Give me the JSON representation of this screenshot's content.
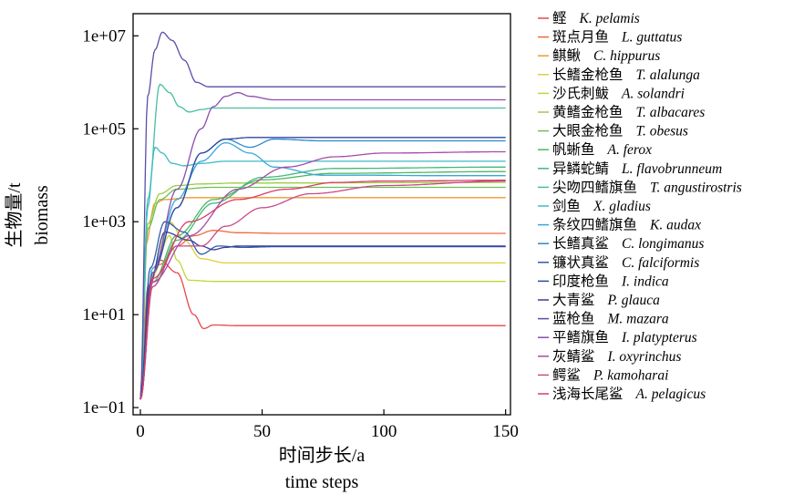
{
  "chart_data": {
    "type": "line",
    "title": "",
    "xlabel": {
      "zh": "时间步长/a",
      "en": "time steps"
    },
    "ylabel": {
      "zh": "生物量/t",
      "en": "biomass"
    },
    "y_scale": "log",
    "xlim": [
      -3,
      152
    ],
    "ylim": [
      0.07,
      30000000
    ],
    "x_ticks": [
      0,
      50,
      100,
      150
    ],
    "x_tick_labels": [
      "0",
      "50",
      "100",
      "150"
    ],
    "y_ticks": [
      0.1,
      10,
      1000,
      100000,
      10000000
    ],
    "y_tick_labels": [
      "1e−01",
      "1e+01",
      "1e+03",
      "1e+05",
      "1e+07"
    ],
    "grid": false,
    "legend_position": "right",
    "series": [
      {
        "name": "鲣",
        "sci": "K. pelamis",
        "color": "#e8474b",
        "x": [
          0,
          3,
          8,
          15,
          22,
          26,
          30,
          40,
          60,
          150
        ],
        "y": [
          0.15,
          30,
          150,
          80,
          10,
          5,
          6,
          5.8,
          5.8,
          5.8
        ]
      },
      {
        "name": "斑点月鱼",
        "sci": "L. guttatus",
        "color": "#ee6a3c",
        "x": [
          0,
          3,
          8,
          15,
          22,
          30,
          40,
          60,
          150
        ],
        "y": [
          0.15,
          40,
          120,
          300,
          500,
          650,
          580,
          560,
          560
        ]
      },
      {
        "name": "鲯鳅",
        "sci": "C. hippurus",
        "color": "#ef9a33",
        "x": [
          0,
          2,
          6,
          10,
          20,
          40,
          150
        ],
        "y": [
          0.15,
          300,
          2500,
          3000,
          3300,
          3300,
          3300
        ]
      },
      {
        "name": "长鳍金枪鱼",
        "sci": "T. alalunga",
        "color": "#dfcf3a",
        "x": [
          0,
          5,
          12,
          18,
          25,
          35,
          150
        ],
        "y": [
          0.15,
          80,
          1000,
          400,
          160,
          130,
          130
        ]
      },
      {
        "name": "沙氏刺鲅",
        "sci": "A. solandri",
        "color": "#c2d63a",
        "x": [
          0,
          5,
          12,
          15,
          20,
          30,
          150
        ],
        "y": [
          0.15,
          70,
          500,
          150,
          55,
          52,
          52
        ]
      },
      {
        "name": "黄鳍金枪鱼",
        "sci": "T. albacares",
        "color": "#9ccc45",
        "x": [
          0,
          3,
          8,
          15,
          25,
          40,
          150
        ],
        "y": [
          0.15,
          900,
          4000,
          6000,
          6500,
          6800,
          7000
        ]
      },
      {
        "name": "大眼金枪鱼",
        "sci": "T. obesus",
        "color": "#6fbf55",
        "x": [
          0,
          3,
          8,
          15,
          30,
          150
        ],
        "y": [
          0.15,
          700,
          3000,
          5000,
          5500,
          5500
        ]
      },
      {
        "name": "帆蜥鱼",
        "sci": "A. ferox",
        "color": "#4cb85e",
        "x": [
          0,
          5,
          15,
          30,
          50,
          80,
          150
        ],
        "y": [
          0.15,
          50,
          500,
          3000,
          8000,
          11000,
          12000
        ]
      },
      {
        "name": "异鳞蛇鲭",
        "sci": "L. flavobrunneum",
        "color": "#44b77e",
        "x": [
          0,
          5,
          15,
          30,
          50,
          80,
          150
        ],
        "y": [
          0.15,
          40,
          400,
          2500,
          9000,
          14000,
          15000
        ]
      },
      {
        "name": "尖吻四鳍旗鱼",
        "sci": "T. angustirostris",
        "color": "#46bfa0",
        "x": [
          0,
          3,
          8,
          12,
          16,
          20,
          25,
          30,
          40,
          60,
          150
        ],
        "y": [
          0.15,
          3000,
          900000,
          600000,
          300000,
          230000,
          260000,
          280000,
          280000,
          280000,
          280000
        ]
      },
      {
        "name": "剑鱼",
        "sci": "X. gladius",
        "color": "#3fbac8",
        "x": [
          0,
          3,
          6,
          9,
          13,
          18,
          25,
          35,
          150
        ],
        "y": [
          0.15,
          2000,
          40000,
          30000,
          18000,
          16000,
          18000,
          20000,
          20000
        ]
      },
      {
        "name": "条纹四鳍旗鱼",
        "sci": "K. audax",
        "color": "#36a8d8",
        "x": [
          0,
          5,
          15,
          25,
          35,
          45,
          55,
          75,
          95,
          120,
          150
        ],
        "y": [
          0.15,
          100,
          3000,
          20000,
          50000,
          30000,
          15000,
          10000,
          10000,
          9800,
          9800
        ]
      },
      {
        "name": "长鳍真鲨",
        "sci": "C. longimanus",
        "color": "#2d86cf",
        "x": [
          0,
          5,
          15,
          25,
          35,
          45,
          55,
          75,
          150
        ],
        "y": [
          0.15,
          80,
          2000,
          30000,
          60000,
          40000,
          60000,
          55000,
          55000
        ]
      },
      {
        "name": "镰状真鲨",
        "sci": "C. falciformis",
        "color": "#2c5ea8",
        "x": [
          0,
          4,
          10,
          18,
          25,
          32,
          42,
          55,
          75,
          150
        ],
        "y": [
          0.15,
          100,
          1000,
          600,
          200,
          300,
          280,
          290,
          290,
          290
        ]
      },
      {
        "name": "印度枪鱼",
        "sci": "I. indica",
        "color": "#2f48a0",
        "x": [
          0,
          5,
          15,
          25,
          35,
          45,
          60,
          80,
          150
        ],
        "y": [
          0.15,
          80,
          2000,
          30000,
          60000,
          65000,
          65000,
          65000,
          65000
        ]
      },
      {
        "name": "大青鲨",
        "sci": "P. glauca",
        "color": "#3a3f95",
        "x": [
          0,
          4,
          10,
          20,
          25,
          30,
          35,
          40,
          50,
          150
        ],
        "y": [
          0.15,
          50,
          600,
          400,
          300,
          250,
          280,
          300,
          300,
          300
        ]
      },
      {
        "name": "蓝枪鱼",
        "sci": "M. mazara",
        "color": "#5650a8",
        "x": [
          0,
          3,
          6,
          9,
          13,
          18,
          23,
          28,
          150
        ],
        "y": [
          0.15,
          500000,
          5000000,
          12000000,
          8000000,
          3000000,
          1000000,
          800000,
          800000
        ]
      },
      {
        "name": "平鳍旗鱼",
        "sci": "I. platypterus",
        "color": "#8a4caf",
        "x": [
          0,
          5,
          15,
          25,
          30,
          35,
          40,
          45,
          55,
          75,
          100,
          150
        ],
        "y": [
          0.15,
          80,
          5000,
          100000,
          300000,
          500000,
          600000,
          500000,
          420000,
          420000,
          420000,
          420000
        ]
      },
      {
        "name": "灰鲭鲨",
        "sci": "I. oxyrinchus",
        "color": "#a74bab",
        "x": [
          0,
          5,
          20,
          40,
          60,
          80,
          100,
          150
        ],
        "y": [
          0.15,
          50,
          500,
          5000,
          15000,
          25000,
          30000,
          32000
        ]
      },
      {
        "name": "鳄鲨",
        "sci": "P. kamoharai",
        "color": "#c94a8b",
        "x": [
          0,
          5,
          15,
          25,
          35,
          50,
          70,
          100,
          150
        ],
        "y": [
          0.15,
          40,
          300,
          300,
          800,
          2000,
          4000,
          6000,
          7500
        ]
      },
      {
        "name": "浅海长尾鲨",
        "sci": "A. pelagicus",
        "color": "#dc3c66",
        "x": [
          0,
          5,
          20,
          40,
          60,
          80,
          100,
          150
        ],
        "y": [
          0.15,
          60,
          1000,
          3000,
          5000,
          7000,
          7500,
          7800
        ]
      }
    ]
  }
}
